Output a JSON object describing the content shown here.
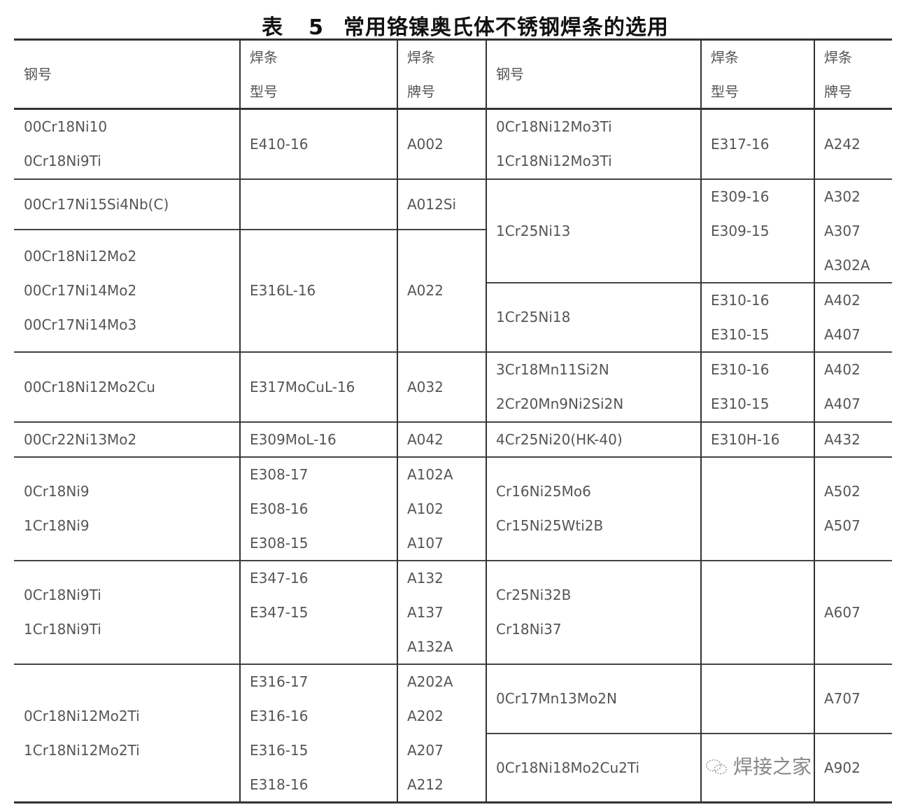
{
  "title": {
    "label": "表",
    "number": "5",
    "text": "常用铬镍奥氏体不锈钢焊条的选用"
  },
  "headers": {
    "steel": [
      "钢号"
    ],
    "type": [
      "焊条",
      "型号"
    ],
    "brand": [
      "焊条",
      "牌号"
    ]
  },
  "left_rows": [
    {
      "steel": [
        "00Cr18Ni10",
        "0Cr18Ni9Ti"
      ],
      "type": [
        "E410-16"
      ],
      "brand": [
        "A002"
      ]
    },
    {
      "steel": [
        "00Cr17Ni15Si4Nb(C)"
      ],
      "type": [
        ""
      ],
      "brand": [
        "A012Si"
      ]
    },
    {
      "steel": [
        "00Cr18Ni12Mo2",
        "00Cr17Ni14Mo2",
        "00Cr17Ni14Mo3"
      ],
      "type": [
        "E316L-16"
      ],
      "brand": [
        "A022"
      ]
    },
    {
      "steel": [
        "00Cr18Ni12Mo2Cu"
      ],
      "type": [
        "E317MoCuL-16"
      ],
      "brand": [
        "A032"
      ]
    },
    {
      "steel": [
        "00Cr22Ni13Mo2"
      ],
      "type": [
        "E309MoL-16"
      ],
      "brand": [
        "A042"
      ]
    },
    {
      "steel": [
        "0Cr18Ni9",
        "1Cr18Ni9"
      ],
      "type": [
        "E308-17",
        "E308-16",
        "E308-15"
      ],
      "brand": [
        "A102A",
        "A102",
        "A107"
      ]
    },
    {
      "steel": [
        "0Cr18Ni9Ti",
        "1Cr18Ni9Ti"
      ],
      "type": [
        "E347-16",
        "E347-15",
        ""
      ],
      "brand": [
        "A132",
        "A137",
        "A132A"
      ]
    },
    {
      "steel": [
        "0Cr18Ni12Mo2Ti",
        "1Cr18Ni12Mo2Ti"
      ],
      "type": [
        "E316-17",
        "E316-16",
        "E316-15",
        "E318-16"
      ],
      "brand": [
        "A202A",
        "A202",
        "A207",
        "A212"
      ]
    }
  ],
  "right_rows": [
    {
      "steel": [
        "0Cr18Ni12Mo3Ti",
        "1Cr18Ni12Mo3Ti"
      ],
      "type": [
        "E317-16"
      ],
      "brand": [
        "A242"
      ]
    },
    {
      "steel": [
        "1Cr25Ni13"
      ],
      "type": [
        "E309-16",
        "E309-15",
        ""
      ],
      "brand": [
        "A302",
        "A307",
        "A302A"
      ]
    },
    {
      "steel": [
        "1Cr25Ni18"
      ],
      "type": [
        "E310-16",
        "E310-15"
      ],
      "brand": [
        "A402",
        "A407"
      ]
    },
    {
      "steel": [
        "3Cr18Mn11Si2N",
        "2Cr20Mn9Ni2Si2N"
      ],
      "type": [
        "E310-16",
        "E310-15"
      ],
      "brand": [
        "A402",
        "A407"
      ]
    },
    {
      "steel": [
        "4Cr25Ni20(HK-40)"
      ],
      "type": [
        "E310H-16"
      ],
      "brand": [
        "A432"
      ]
    },
    {
      "steel": [
        "Cr16Ni25Mo6",
        "Cr15Ni25Wti2B"
      ],
      "type": [
        ""
      ],
      "brand": [
        "A502",
        "A507"
      ]
    },
    {
      "steel": [
        "Cr25Ni32B",
        "Cr18Ni37"
      ],
      "type": [
        ""
      ],
      "brand": [
        "A607"
      ]
    },
    {
      "steel": [
        "0Cr17Mn13Mo2N"
      ],
      "type": [
        ""
      ],
      "brand": [
        "A707"
      ]
    },
    {
      "steel": [
        "0Cr18Ni18Mo2Cu2Ti"
      ],
      "type": [
        ""
      ],
      "brand": [
        "A902"
      ]
    }
  ],
  "watermark": {
    "text": "焊接之家",
    "icon": "wechat-icon"
  }
}
